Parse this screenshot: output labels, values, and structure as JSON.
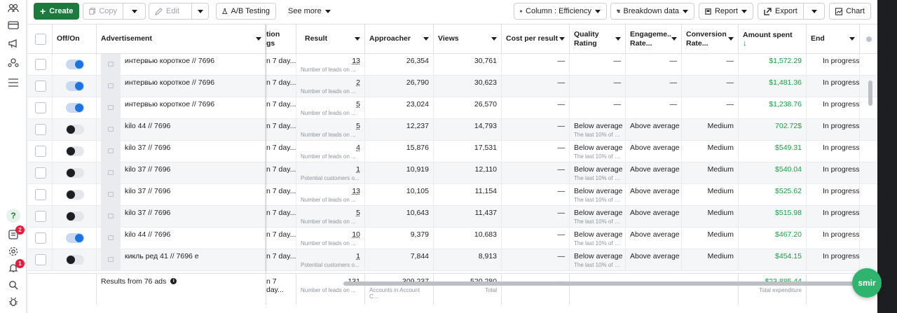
{
  "toolbar": {
    "create_label": "Create",
    "copy_label": "Copy",
    "edit_label": "Edit",
    "ab_testing_label": "A/B Testing",
    "see_more_label": "See more",
    "column_label": "Column : Efficiency",
    "breakdown_label": "Breakdown data",
    "report_label": "Report",
    "export_label": "Export",
    "chart_label": "Chart"
  },
  "columns": {
    "off_on": "Off/On",
    "advertisement": "Advertisement",
    "attribution_top": "tion",
    "attribution_bottom": "gs",
    "result": "Result",
    "approacher": "Approacher",
    "views": "Views",
    "cost_per_result": "Cost per result",
    "quality_rating": "Quality Rating",
    "engagement_rate": "Engageme... Rate...",
    "conversion_rate": "Conversion Rate...",
    "amount_spent": "Amount spent",
    "amount_spent_sort": "↓",
    "end": "End"
  },
  "rows": [
    {
      "on": true,
      "name": "интервью короткое // 7696",
      "attribution": "n 7 day...",
      "result": "13",
      "result_sub": "Number of leads on ...",
      "approacher": "26,354",
      "views": "30,761",
      "cost": "—",
      "quality": "—",
      "quality_sub": "",
      "engagement": "—",
      "conversion": "—",
      "spent": "$1,572.29",
      "end": "In progress"
    },
    {
      "on": true,
      "name": "интервью короткое // 7696",
      "attribution": "n 7 day...",
      "result": "2",
      "result_sub": "Number of leads on ...",
      "approacher": "26,790",
      "views": "30,623",
      "cost": "—",
      "quality": "—",
      "quality_sub": "",
      "engagement": "—",
      "conversion": "—",
      "spent": "$1,481.36",
      "end": "In progress"
    },
    {
      "on": true,
      "name": "интервью короткое // 7696",
      "attribution": "n 7 day...",
      "result": "5",
      "result_sub": "Number of leads on ...",
      "approacher": "23,024",
      "views": "26,570",
      "cost": "—",
      "quality": "—",
      "quality_sub": "",
      "engagement": "—",
      "conversion": "—",
      "spent": "$1,238.76",
      "end": "In progress"
    },
    {
      "on": false,
      "name": "kilo 44 // 7696",
      "attribution": "n 7 day...",
      "result": "5",
      "result_sub": "Number of leads on ...",
      "approacher": "12,237",
      "views": "14,793",
      "cost": "—",
      "quality": "Below average",
      "quality_sub": "The last 10% of ads",
      "engagement": "Above average",
      "conversion": "Medium",
      "spent": "702.72$",
      "end": "In progress"
    },
    {
      "on": false,
      "name": "kilo 37 // 7696",
      "attribution": "n 7 day...",
      "result": "4",
      "result_sub": "Number of leads on ...",
      "approacher": "15,876",
      "views": "17,531",
      "cost": "—",
      "quality": "Below average",
      "quality_sub": "The last 10% of ads",
      "engagement": "Above average",
      "conversion": "Medium",
      "spent": "$549.31",
      "end": "In progress"
    },
    {
      "on": false,
      "name": "kilo 37 // 7696",
      "attribution": "n 7 day...",
      "result": "1",
      "result_sub": "Potential customers o...",
      "approacher": "10,919",
      "views": "12,110",
      "cost": "—",
      "quality": "Below average",
      "quality_sub": "The last 10% of ads",
      "engagement": "Above average",
      "conversion": "Medium",
      "spent": "$540.04",
      "end": "In progress"
    },
    {
      "on": false,
      "name": "kilo 37 // 7696",
      "attribution": "n 7 day...",
      "result": "13",
      "result_sub": "Number of leads on ...",
      "approacher": "10,105",
      "views": "11,154",
      "cost": "—",
      "quality": "Below average",
      "quality_sub": "The last 10% of ads",
      "engagement": "Above average",
      "conversion": "Medium",
      "spent": "$525.62",
      "end": "In progress"
    },
    {
      "on": false,
      "name": "kilo 37 // 7696",
      "attribution": "n 7 day...",
      "result": "5",
      "result_sub": "Number of leads on ...",
      "approacher": "10,643",
      "views": "11,437",
      "cost": "—",
      "quality": "Below average",
      "quality_sub": "The last 10% of ads",
      "engagement": "Above average",
      "conversion": "Medium",
      "spent": "$515.98",
      "end": "In progress"
    },
    {
      "on": true,
      "name": "kilo 44 // 7696",
      "attribution": "n 7 day...",
      "result": "10",
      "result_sub": "Number of leads on ...",
      "approacher": "9,379",
      "views": "10,683",
      "cost": "—",
      "quality": "Below average",
      "quality_sub": "The last 10% of ads",
      "engagement": "Above average",
      "conversion": "Medium",
      "spent": "$467.20",
      "end": "In progress"
    },
    {
      "on": false,
      "name": "кикль ред 41 // 7696 е",
      "attribution": "n 7 day...",
      "result": "1",
      "result_sub": "Potential customers o...",
      "approacher": "7,844",
      "views": "8,913",
      "cost": "—",
      "quality": "Below average",
      "quality_sub": "The last 10% of ads",
      "engagement": "Above average",
      "conversion": "Medium",
      "spent": "$454.15",
      "end": "In progress"
    }
  ],
  "footer": {
    "results_label": "Results from 76 ads",
    "attribution": "n 7 day...",
    "result": "131",
    "result_sub": "Number of leads on ...",
    "approacher": "309,237",
    "approacher_sub": "Accounts in Account C...",
    "views": "520,280",
    "views_sub": "Total",
    "cost": "—",
    "spent": "$23,885.44",
    "spent_sub": "Total expenditure"
  },
  "rail": {
    "notifications_badge": "2",
    "alerts_badge": "1"
  },
  "smir_label": "smir",
  "colors": {
    "green": "#1a9f45",
    "primary": "#1d7a3e",
    "toggle_on": "#1b74e4"
  }
}
